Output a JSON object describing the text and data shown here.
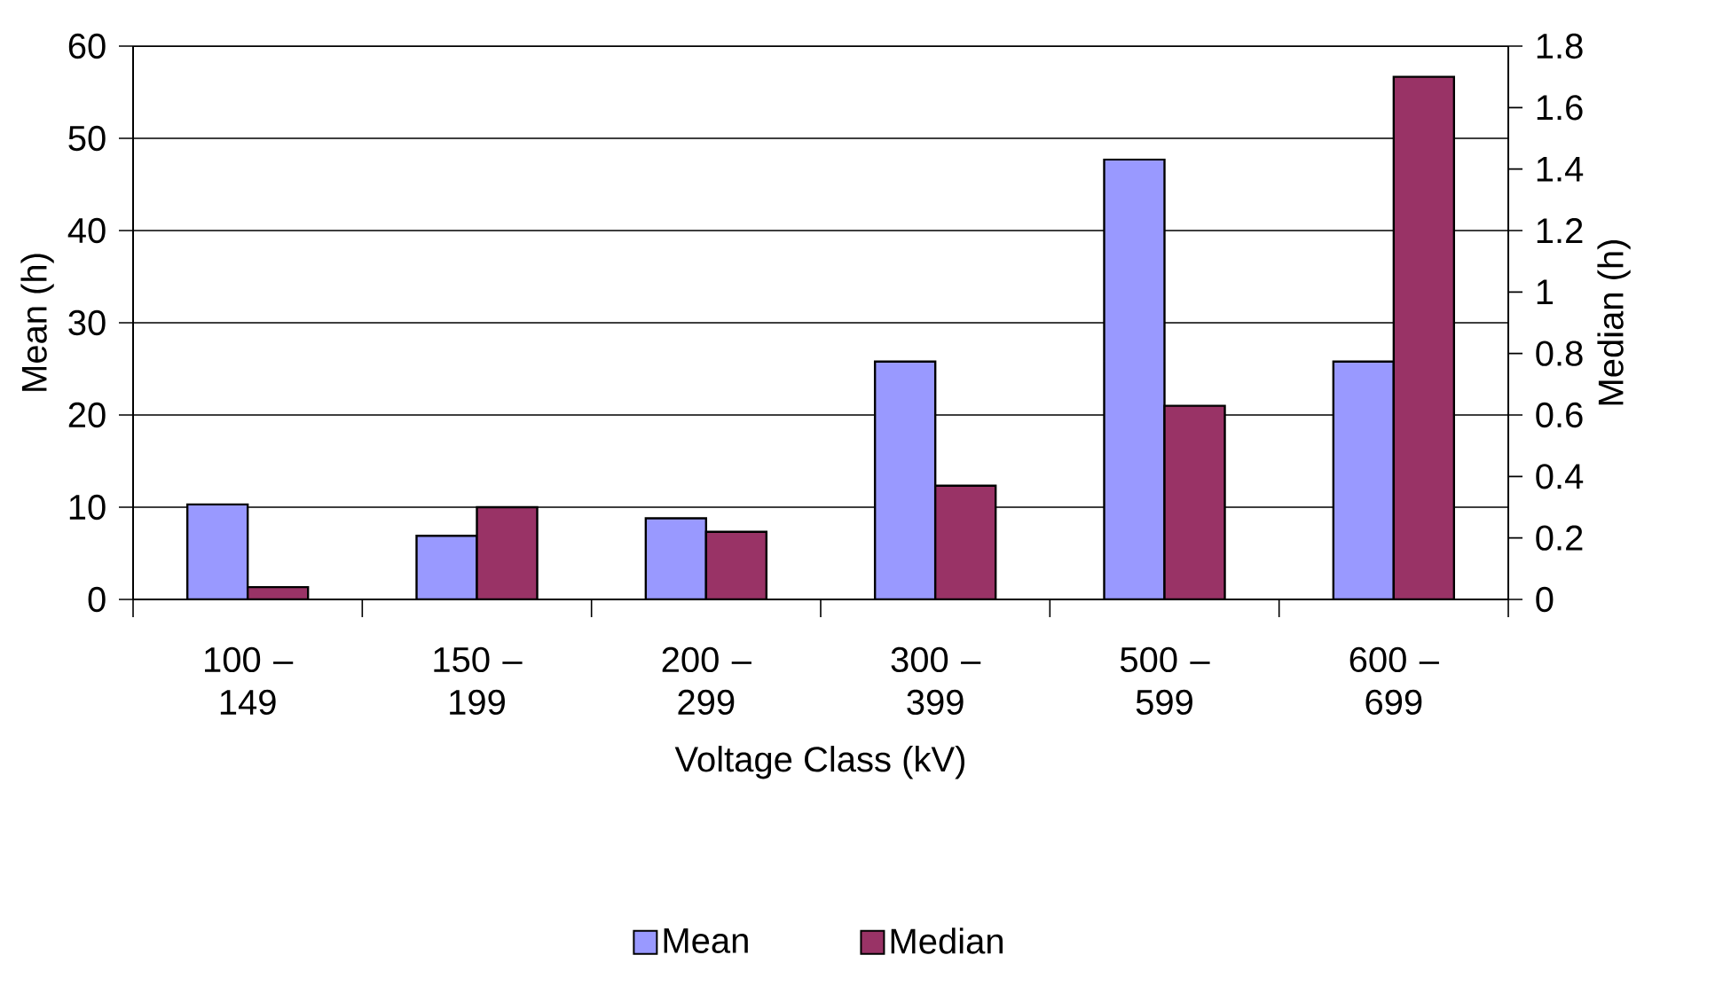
{
  "chart_data": {
    "type": "bar",
    "xlabel": "Voltage Class (kV)",
    "ylabel": "Mean (h)",
    "y2label": "Median (h)",
    "categories": [
      "100 – 149",
      "150 – 199",
      "200 – 299",
      "300 – 399",
      "500 – 599",
      "600 – 699"
    ],
    "series": [
      {
        "name": "Mean",
        "color": "#9999ff",
        "values": [
          10.3,
          6.9,
          8.8,
          25.8,
          47.7,
          25.8
        ]
      },
      {
        "name": "Median",
        "color": "#993366",
        "axis": "y2",
        "values": [
          0.04,
          0.3,
          0.22,
          0.37,
          0.63,
          1.7
        ]
      }
    ],
    "ylim": [
      0,
      60
    ],
    "yticks": [
      0,
      10,
      20,
      30,
      40,
      50,
      60
    ],
    "y2lim": [
      0,
      1.8
    ],
    "y2ticks": [
      0,
      0.2,
      0.4,
      0.6,
      0.8,
      1,
      1.2,
      1.4,
      1.6,
      1.8
    ],
    "grid": "y",
    "legend": "bottom"
  }
}
